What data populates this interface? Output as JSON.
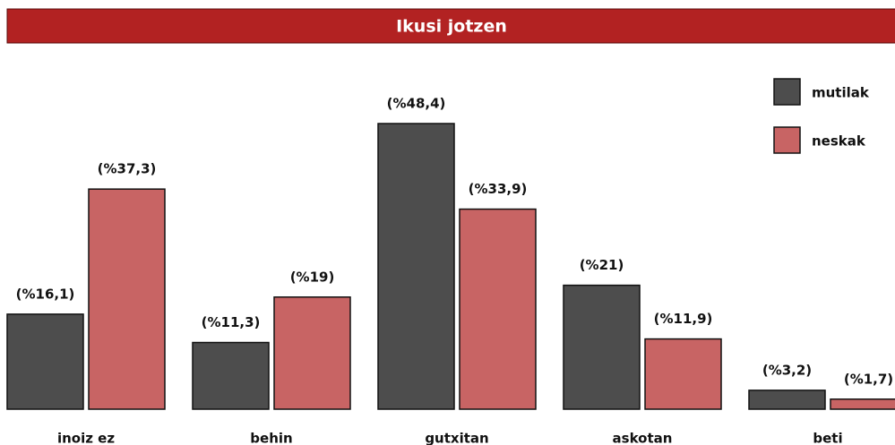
{
  "chart_data": {
    "type": "bar",
    "title": "Ikusi jotzen",
    "categories": [
      "inoiz ez",
      "behin",
      "gutxitan",
      "askotan",
      "beti"
    ],
    "series": [
      {
        "name": "mutilak",
        "color": "#4d4d4d",
        "values": [
          16.1,
          11.3,
          48.4,
          21,
          3.2
        ],
        "value_labels": [
          "(%16,1)",
          "(%11,3)",
          "(%48,4)",
          "(%21)",
          "(%3,2)"
        ]
      },
      {
        "name": "neskak",
        "color": "#c86464",
        "values": [
          37.3,
          19,
          33.9,
          11.9,
          1.7
        ],
        "value_labels": [
          "(%37,3)",
          "(%19)",
          "(%33,9)",
          "(%11,9)",
          "(%1,7)"
        ]
      }
    ],
    "legend": "top-right"
  }
}
